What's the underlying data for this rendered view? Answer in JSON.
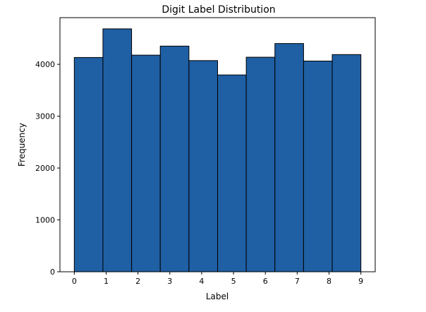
{
  "chart_data": {
    "type": "bar",
    "title": "Digit Label Distribution",
    "xlabel": "Label",
    "ylabel": "Frequency",
    "xlim": [
      -0.45,
      9.45
    ],
    "ylim": [
      0,
      4900
    ],
    "xticks": [
      "0",
      "1",
      "2",
      "3",
      "4",
      "5",
      "6",
      "7",
      "8",
      "9"
    ],
    "yticks": [
      "0",
      "1000",
      "2000",
      "3000",
      "4000"
    ],
    "bins": [
      {
        "start": 0.0,
        "end": 0.9,
        "value": 4132
      },
      {
        "start": 0.9,
        "end": 1.8,
        "value": 4684
      },
      {
        "start": 1.8,
        "end": 2.7,
        "value": 4177
      },
      {
        "start": 2.7,
        "end": 3.6,
        "value": 4351
      },
      {
        "start": 3.6,
        "end": 4.5,
        "value": 4072
      },
      {
        "start": 4.5,
        "end": 5.4,
        "value": 3795
      },
      {
        "start": 5.4,
        "end": 6.3,
        "value": 4137
      },
      {
        "start": 6.3,
        "end": 7.2,
        "value": 4401
      },
      {
        "start": 7.2,
        "end": 8.1,
        "value": 4063
      },
      {
        "start": 8.1,
        "end": 9.0,
        "value": 4188
      }
    ],
    "bar_color": "#1f5fa3",
    "edge_color": "#000000",
    "grid": false,
    "legend": "none"
  }
}
